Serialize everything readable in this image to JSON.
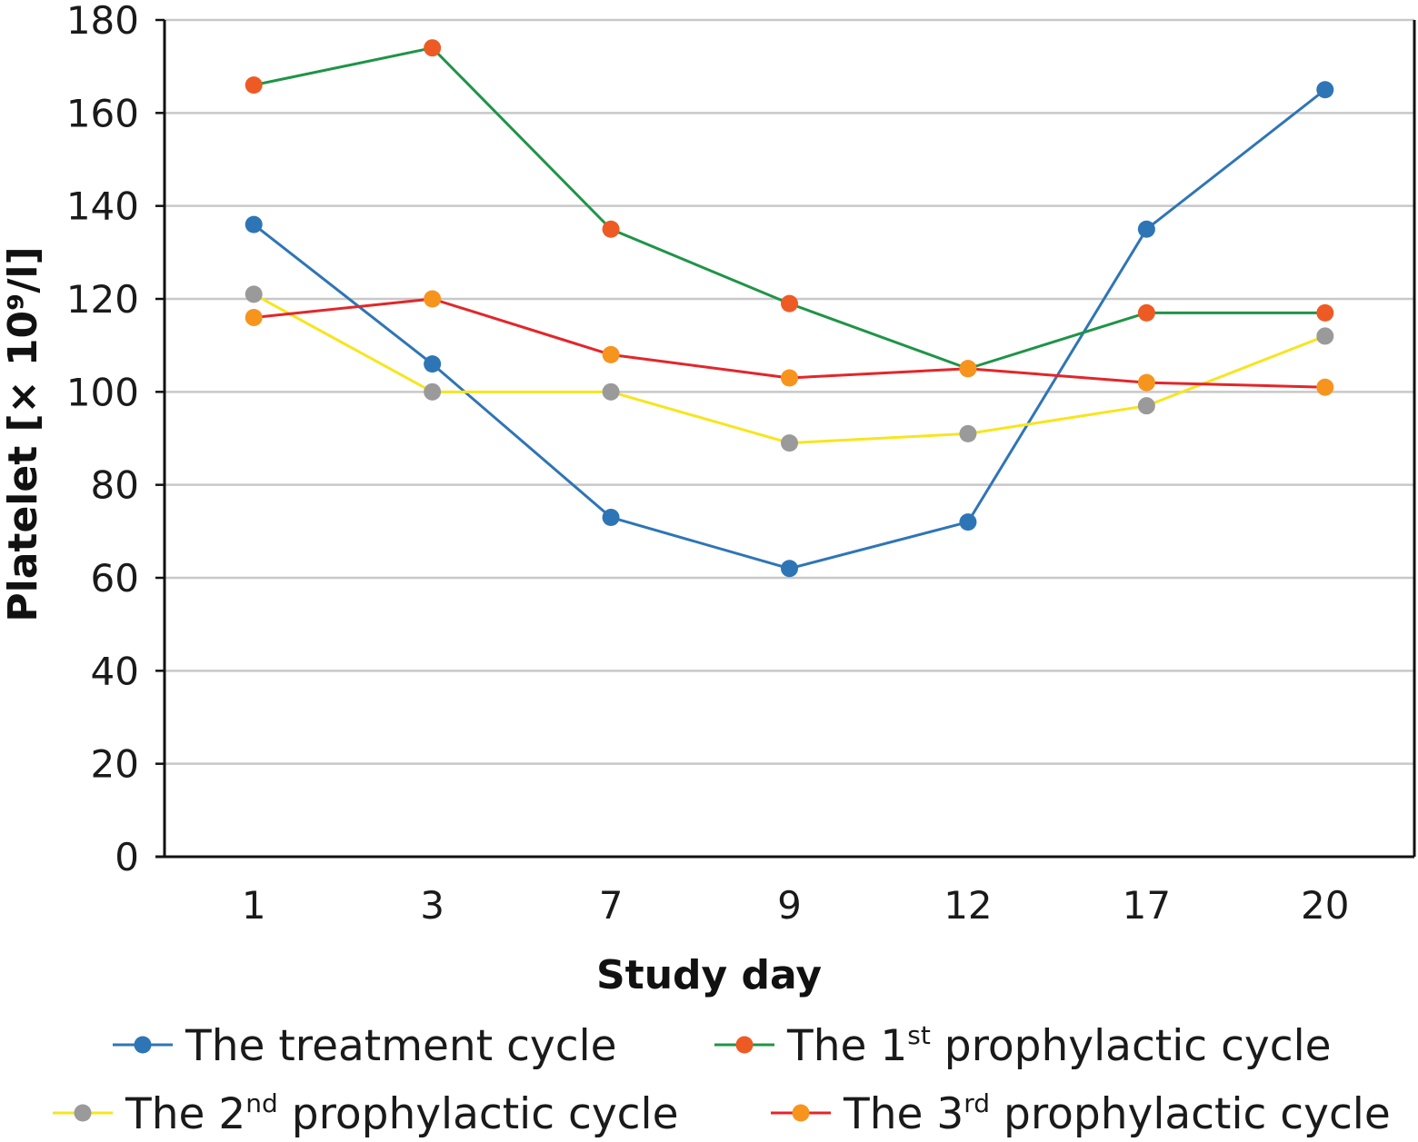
{
  "chart_data": {
    "type": "line",
    "title": "",
    "xlabel": "Study day",
    "ylabel": "Platelet [× 10⁹/l]",
    "categories": [
      "1",
      "3",
      "7",
      "9",
      "12",
      "17",
      "20"
    ],
    "ylim": [
      0,
      180
    ],
    "yticks": [
      0,
      20,
      40,
      60,
      80,
      100,
      120,
      140,
      160,
      180
    ],
    "grid": "horizontal",
    "legend_position": "bottom",
    "series": [
      {
        "name": "The treatment cycle",
        "name_prefix": "The treatment cycle",
        "name_sup": "",
        "name_suffix": "",
        "line_color": "#2e75b6",
        "marker_color": "#2e75b6",
        "values": [
          136,
          106,
          73,
          62,
          72,
          135,
          165
        ]
      },
      {
        "name": "The 1st prophylactic cycle",
        "name_prefix": "The 1",
        "name_sup": "st",
        "name_suffix": " prophylactic cycle",
        "line_color": "#1f9447",
        "marker_color": "#ee5a24",
        "values": [
          166,
          174,
          135,
          119,
          105,
          117,
          117
        ]
      },
      {
        "name": "The 2nd prophylactic cycle",
        "name_prefix": "The 2",
        "name_sup": "nd",
        "name_suffix": " prophylactic cycle",
        "line_color": "#f7e51e",
        "marker_color": "#9a9a9a",
        "values": [
          121,
          100,
          100,
          89,
          91,
          97,
          112
        ]
      },
      {
        "name": "The 3rd prophylactic cycle",
        "name_prefix": "The 3",
        "name_sup": "rd",
        "name_suffix": " prophylactic cycle",
        "line_color": "#e3262a",
        "marker_color": "#f7941d",
        "values": [
          116,
          120,
          108,
          103,
          105,
          102,
          101
        ]
      }
    ]
  },
  "colors": {
    "grid": "#c8c8c8",
    "axis": "#111111"
  }
}
